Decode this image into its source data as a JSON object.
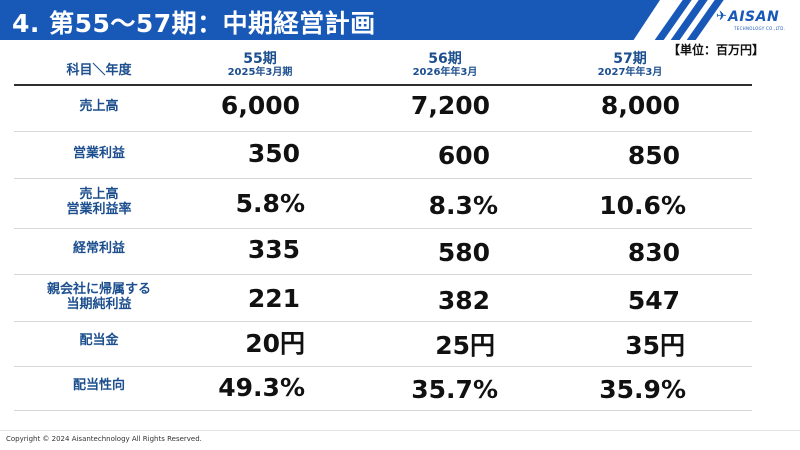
{
  "header": {
    "title": "4. 第55～57期：中期経営計画",
    "logo_name": "AISAN",
    "logo_sub": "TECHNOLOGY CO.,LTD."
  },
  "unit_label": "【単位：百万円】",
  "table": {
    "corner_label": "科目＼年度",
    "columns": [
      {
        "period": "55期",
        "date": "2025年3月期"
      },
      {
        "period": "56期",
        "date": "2026年年3月"
      },
      {
        "period": "57期",
        "date": "2027年年3月"
      }
    ],
    "rows": [
      {
        "label_1": "売上高",
        "label_2": "",
        "values": [
          "6,000",
          "7,200",
          "8,000"
        ]
      },
      {
        "label_1": "営業利益",
        "label_2": "",
        "values": [
          "350",
          "600",
          "850"
        ]
      },
      {
        "label_1": "売上高",
        "label_2": "営業利益率",
        "values": [
          "5.8%",
          "8.3%",
          "10.6%"
        ]
      },
      {
        "label_1": "経常利益",
        "label_2": "",
        "values": [
          "335",
          "580",
          "830"
        ]
      },
      {
        "label_1": "親会社に帰属する",
        "label_2": "当期純利益",
        "values": [
          "221",
          "382",
          "547"
        ]
      },
      {
        "label_1": "配当金",
        "label_2": "",
        "values": [
          "20円",
          "25円",
          "35円"
        ]
      },
      {
        "label_1": "配当性向",
        "label_2": "",
        "values": [
          "49.3%",
          "35.7%",
          "35.9%"
        ]
      }
    ]
  },
  "footer": "Copyright © 2024 Aisantechnology All Rights Reserved.",
  "colors": {
    "brand_blue": "#1859b8",
    "label_blue": "#1d4f8f"
  }
}
